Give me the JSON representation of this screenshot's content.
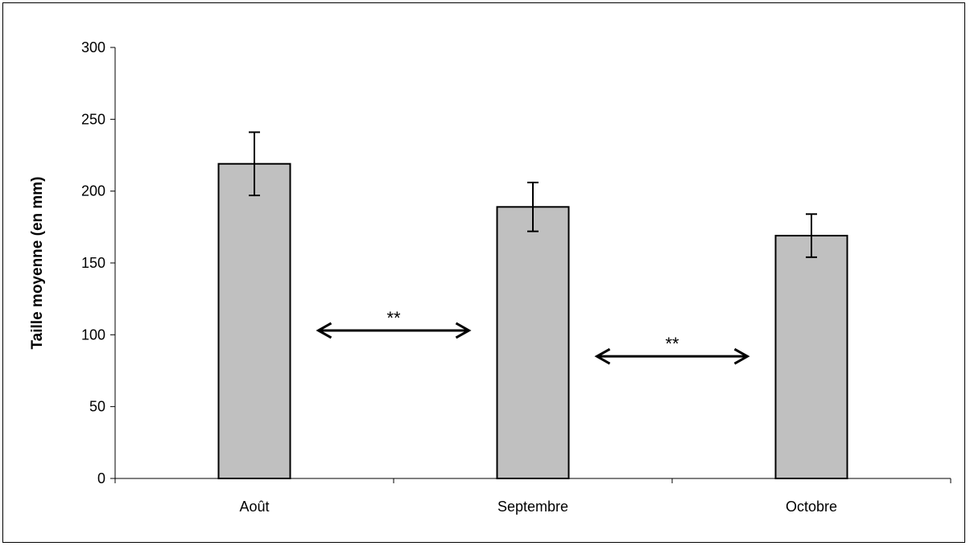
{
  "chart_data": {
    "type": "bar",
    "title": "",
    "xlabel": "",
    "ylabel": "Taille moyenne (en mm)",
    "categories": [
      "Août",
      "Septembre",
      "Octobre"
    ],
    "values": [
      219,
      189,
      169
    ],
    "error": [
      22,
      17,
      15
    ],
    "ylim": [
      0,
      300
    ],
    "yticks": [
      0,
      50,
      100,
      150,
      200,
      250,
      300
    ],
    "grid": false,
    "bar_color": "#c0c0c0",
    "annotations": [
      {
        "text": "**",
        "from": "Août",
        "to": "Septembre",
        "y": 103
      },
      {
        "text": "**",
        "from": "Septembre",
        "to": "Octobre",
        "y": 85
      }
    ]
  }
}
